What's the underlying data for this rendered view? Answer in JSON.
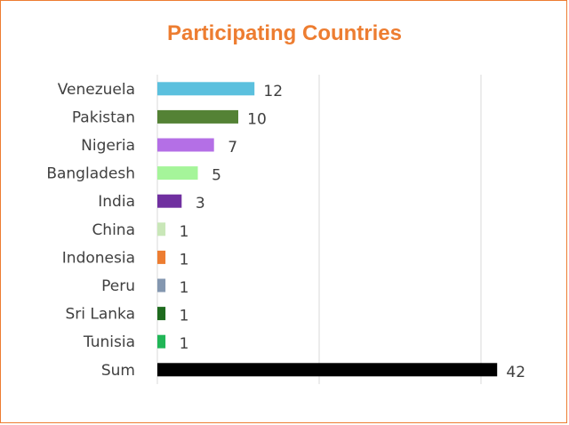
{
  "chart_data": {
    "type": "bar",
    "orientation": "horizontal",
    "title": "Participating Countries",
    "title_color": "#ED7D31",
    "categories": [
      "Venezuela",
      "Pakistan",
      "Nigeria",
      "Bangladesh",
      "India",
      "China",
      "Indonesia",
      "Peru",
      "Sri Lanka",
      "Tunisia",
      "Sum"
    ],
    "values": [
      12,
      10,
      7,
      5,
      3,
      1,
      1,
      1,
      1,
      1,
      42
    ],
    "data_labels": [
      "12",
      "10",
      "7",
      "5",
      "3",
      "1",
      "1",
      "1",
      "1",
      "1",
      "42"
    ],
    "colors": [
      "#5BC0DE",
      "#548235",
      "#B46FE6",
      "#A5F59A",
      "#7030A0",
      "#C9E7B8",
      "#ED7D31",
      "#8497B0",
      "#1E6B1E",
      "#21B657",
      "#000000"
    ],
    "xlim": [
      0,
      40
    ],
    "gridlines": "vertical",
    "legend": "none",
    "border_color": "#ED7D31"
  }
}
